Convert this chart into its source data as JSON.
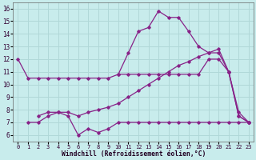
{
  "xlabel": "Windchill (Refroidissement éolien,°C)",
  "bg_color": "#c8ecec",
  "grid_color": "#b0d8d8",
  "line_color": "#882288",
  "xlim": [
    -0.5,
    23.5
  ],
  "ylim": [
    5.5,
    16.5
  ],
  "xticks": [
    0,
    1,
    2,
    3,
    4,
    5,
    6,
    7,
    8,
    9,
    10,
    11,
    12,
    13,
    14,
    15,
    16,
    17,
    18,
    19,
    20,
    21,
    22,
    23
  ],
  "yticks": [
    6,
    7,
    8,
    9,
    10,
    11,
    12,
    13,
    14,
    15,
    16
  ],
  "series": {
    "line1": {
      "x": [
        0,
        1,
        2,
        3,
        4,
        5,
        6,
        7,
        8,
        9,
        10,
        11,
        12,
        13,
        14,
        15,
        16,
        17,
        18,
        19,
        20,
        21,
        22,
        23
      ],
      "y": [
        12.0,
        10.5,
        10.5,
        10.5,
        10.5,
        10.5,
        10.5,
        10.5,
        10.5,
        10.5,
        10.8,
        10.8,
        10.8,
        10.8,
        10.8,
        10.8,
        10.8,
        10.8,
        10.8,
        12.0,
        12.0,
        11.0,
        7.5,
        7.0
      ]
    },
    "line2": {
      "x": [
        1,
        2,
        3,
        4,
        5,
        6,
        7,
        8,
        9,
        10,
        11,
        12,
        13,
        14,
        15,
        16,
        17,
        18,
        19,
        20,
        21,
        22,
        23
      ],
      "y": [
        7.0,
        7.0,
        7.5,
        7.8,
        7.5,
        6.0,
        6.5,
        6.2,
        6.5,
        7.0,
        7.0,
        7.0,
        7.0,
        7.0,
        7.0,
        7.0,
        7.0,
        7.0,
        7.0,
        7.0,
        7.0,
        7.0,
        7.0
      ]
    },
    "line3": {
      "x": [
        2,
        3,
        4,
        5,
        6,
        7,
        8,
        9,
        10,
        11,
        12,
        13,
        14,
        15,
        16,
        17,
        18,
        19,
        20,
        21,
        22,
        23
      ],
      "y": [
        7.5,
        7.8,
        7.8,
        7.8,
        7.5,
        7.8,
        8.0,
        8.2,
        8.5,
        9.0,
        9.5,
        10.0,
        10.5,
        11.0,
        11.5,
        11.8,
        12.2,
        12.5,
        12.8,
        11.0,
        7.8,
        7.0
      ]
    },
    "line4": {
      "x": [
        10,
        11,
        12,
        13,
        14,
        15,
        16,
        17,
        18,
        19,
        20,
        21,
        22,
        23
      ],
      "y": [
        10.8,
        12.5,
        14.2,
        14.5,
        15.8,
        15.3,
        15.3,
        14.2,
        13.0,
        12.5,
        12.5,
        11.0,
        7.5,
        7.0
      ]
    }
  }
}
